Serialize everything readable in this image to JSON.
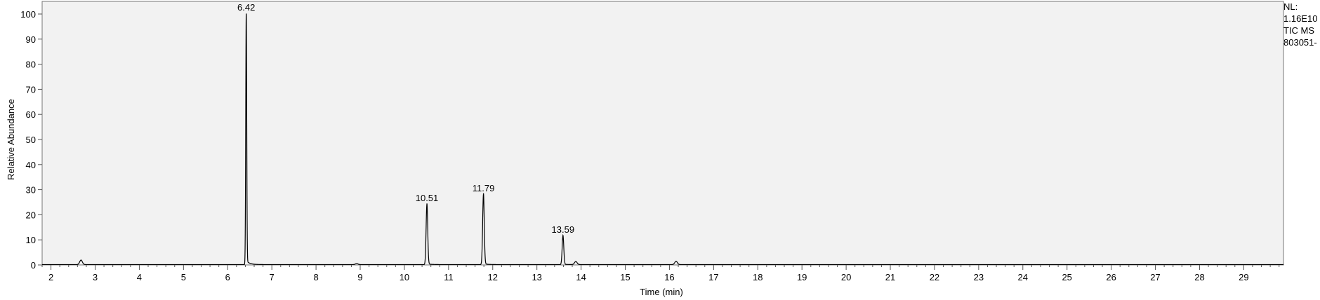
{
  "info": {
    "nl_label": "NL:",
    "nl_value": "1.16E10",
    "trace": "TIC  MS",
    "file": "803051-"
  },
  "chart_data": {
    "type": "line",
    "xlabel": "Time (min)",
    "ylabel": "Relative Abundance",
    "xlim": [
      1.8,
      29.9
    ],
    "ylim": [
      0,
      100
    ],
    "xticks": [
      2,
      3,
      4,
      5,
      6,
      7,
      8,
      9,
      10,
      11,
      12,
      13,
      14,
      15,
      16,
      17,
      18,
      19,
      20,
      21,
      22,
      23,
      24,
      25,
      26,
      27,
      28,
      29
    ],
    "yticks": [
      0,
      10,
      20,
      30,
      40,
      50,
      60,
      70,
      80,
      90,
      100
    ],
    "grid": false,
    "colors": {
      "trace": "#000000",
      "plot_bg": "#f2f2f2",
      "axis": "#555555"
    },
    "peaks": [
      {
        "rt": 2.68,
        "height": 1.8
      },
      {
        "rt": 6.42,
        "height": 100,
        "label": "6.42"
      },
      {
        "rt": 8.92,
        "height": 0.4
      },
      {
        "rt": 10.51,
        "height": 24,
        "label": "10.51"
      },
      {
        "rt": 11.79,
        "height": 28,
        "label": "11.79"
      },
      {
        "rt": 13.59,
        "height": 11.5,
        "label": "13.59"
      },
      {
        "rt": 13.88,
        "height": 1.2
      },
      {
        "rt": 16.15,
        "height": 1.3
      }
    ]
  }
}
